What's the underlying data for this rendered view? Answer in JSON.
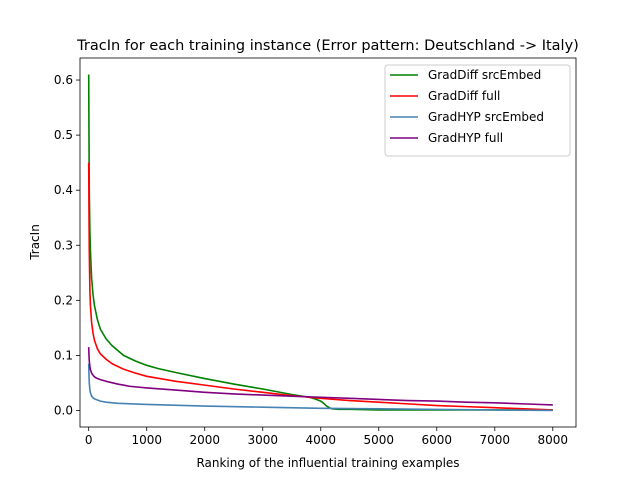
{
  "chart_data": {
    "type": "line",
    "title": "TracIn for each training instance (Error pattern: Deutschland -> Italy)",
    "xlabel": "Ranking of the influential training examples",
    "ylabel": "TracIn",
    "xlim": [
      -150,
      8400
    ],
    "ylim": [
      -0.03,
      0.64
    ],
    "xticks": [
      0,
      1000,
      2000,
      3000,
      4000,
      5000,
      6000,
      7000,
      8000
    ],
    "xtick_labels": [
      "0",
      "1000",
      "2000",
      "3000",
      "4000",
      "5000",
      "6000",
      "7000",
      "8000"
    ],
    "yticks": [
      0.0,
      0.1,
      0.2,
      0.3,
      0.4,
      0.5,
      0.6
    ],
    "ytick_labels": [
      "0.0",
      "0.1",
      "0.2",
      "0.3",
      "0.4",
      "0.5",
      "0.6"
    ],
    "grid": false,
    "legend_position": "top-right",
    "series": [
      {
        "name": "GradDiff srcEmbed",
        "color": "#008000",
        "x": [
          0,
          5,
          10,
          20,
          30,
          50,
          75,
          100,
          150,
          200,
          300,
          400,
          600,
          800,
          1000,
          1200,
          1500,
          2000,
          2500,
          3000,
          3500,
          3800,
          3900,
          4000,
          4050,
          4100,
          4150,
          4200,
          4300,
          4500,
          5000,
          6000,
          7000,
          8000
        ],
        "y": [
          0.61,
          0.5,
          0.4,
          0.33,
          0.29,
          0.24,
          0.21,
          0.19,
          0.165,
          0.148,
          0.13,
          0.118,
          0.1,
          0.09,
          0.082,
          0.076,
          0.069,
          0.058,
          0.048,
          0.039,
          0.029,
          0.024,
          0.021,
          0.017,
          0.013,
          0.008,
          0.005,
          0.003,
          0.002,
          0.002,
          0.001,
          0.001,
          0.001,
          0.001
        ]
      },
      {
        "name": "GradDiff full",
        "color": "#ff0000",
        "x": [
          0,
          5,
          10,
          20,
          30,
          50,
          75,
          100,
          150,
          200,
          300,
          400,
          600,
          800,
          1000,
          1500,
          2000,
          2500,
          3000,
          3500,
          4000,
          4500,
          5000,
          5500,
          6000,
          6500,
          7000,
          7500,
          8000
        ],
        "y": [
          0.45,
          0.36,
          0.29,
          0.22,
          0.19,
          0.16,
          0.14,
          0.127,
          0.112,
          0.103,
          0.093,
          0.085,
          0.075,
          0.068,
          0.062,
          0.053,
          0.046,
          0.039,
          0.033,
          0.027,
          0.022,
          0.018,
          0.015,
          0.012,
          0.009,
          0.007,
          0.005,
          0.003,
          0.001
        ]
      },
      {
        "name": "GradHYP srcEmbed",
        "color": "#4682b4",
        "x": [
          0,
          5,
          10,
          20,
          30,
          50,
          75,
          100,
          150,
          200,
          300,
          500,
          1000,
          2000,
          3000,
          4000,
          5000,
          6000,
          7000,
          8000
        ],
        "y": [
          0.085,
          0.065,
          0.05,
          0.038,
          0.032,
          0.026,
          0.023,
          0.021,
          0.019,
          0.017,
          0.015,
          0.013,
          0.011,
          0.008,
          0.006,
          0.004,
          0.003,
          0.002,
          0.001,
          0.0
        ]
      },
      {
        "name": "GradHYP full",
        "color": "#800080",
        "x": [
          0,
          5,
          10,
          20,
          30,
          50,
          75,
          100,
          150,
          200,
          300,
          500,
          700,
          1000,
          1500,
          2000,
          2500,
          3000,
          3500,
          4000,
          4500,
          5000,
          5500,
          6000,
          6500,
          7000,
          7500,
          8000
        ],
        "y": [
          0.115,
          0.1,
          0.09,
          0.08,
          0.074,
          0.068,
          0.064,
          0.061,
          0.058,
          0.056,
          0.053,
          0.048,
          0.044,
          0.041,
          0.037,
          0.033,
          0.03,
          0.028,
          0.026,
          0.024,
          0.022,
          0.02,
          0.018,
          0.017,
          0.015,
          0.014,
          0.012,
          0.01
        ]
      }
    ]
  }
}
